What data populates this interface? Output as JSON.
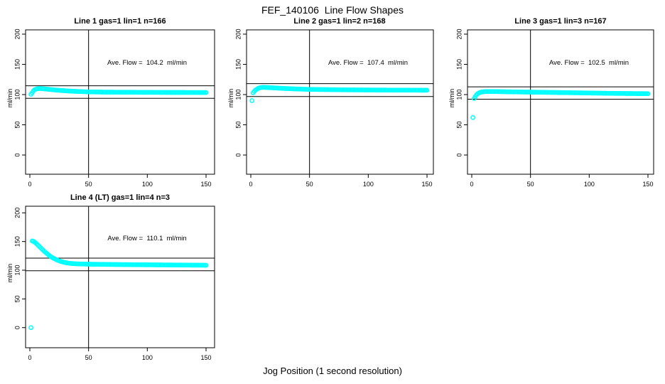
{
  "figure": {
    "main_title": "FEF_140106  Line Flow Shapes",
    "x_axis_label": "Jog Position (1 second resolution)",
    "y_axis_label": "ml/min",
    "point_color": "#00FFFF",
    "line_color": "#000000",
    "background_color": "#FFFFFF"
  },
  "chart_data": [
    {
      "type": "scatter",
      "title": "Line 1 gas=1 lin=1 n=166",
      "annotation": "Ave. Flow =  104.2  ml/min",
      "ave_flow": 104.2,
      "n": 166,
      "ylabel": "ml/min",
      "xlim": [
        0,
        150
      ],
      "ylim": [
        0,
        200
      ],
      "x_ticks": [
        0,
        50,
        100,
        150
      ],
      "y_ticks": [
        0,
        50,
        100,
        150,
        200
      ],
      "vline_x": 50,
      "ref_lines": [
        114.6,
        93.8
      ],
      "outliers": [],
      "band_keyframes": [
        [
          1,
          100.5
        ],
        [
          2,
          103
        ],
        [
          3,
          106
        ],
        [
          4,
          108
        ],
        [
          6,
          109.5
        ],
        [
          9,
          110
        ],
        [
          13,
          109.3
        ],
        [
          18,
          108.3
        ],
        [
          25,
          107
        ],
        [
          32,
          106
        ],
        [
          40,
          105.2
        ],
        [
          50,
          104.5
        ],
        [
          65,
          104
        ],
        [
          85,
          103.8
        ],
        [
          110,
          103.6
        ],
        [
          150,
          103.4
        ]
      ]
    },
    {
      "type": "scatter",
      "title": "Line 2 gas=1 lin=2 n=168",
      "annotation": "Ave. Flow =  107.4  ml/min",
      "ave_flow": 107.4,
      "n": 168,
      "ylabel": "ml/min",
      "xlim": [
        0,
        150
      ],
      "ylim": [
        0,
        200
      ],
      "x_ticks": [
        0,
        50,
        100,
        150
      ],
      "y_ticks": [
        0,
        50,
        100,
        150,
        200
      ],
      "vline_x": 50,
      "ref_lines": [
        118.1,
        96.7
      ],
      "outliers": [
        [
          1,
          90
        ]
      ],
      "band_keyframes": [
        [
          2,
          103
        ],
        [
          3,
          105.5
        ],
        [
          4,
          107.5
        ],
        [
          6,
          110
        ],
        [
          8,
          111.5
        ],
        [
          11,
          112
        ],
        [
          16,
          111.5
        ],
        [
          22,
          110.8
        ],
        [
          30,
          110
        ],
        [
          40,
          109.2
        ],
        [
          50,
          108.6
        ],
        [
          65,
          108.2
        ],
        [
          85,
          107.8
        ],
        [
          110,
          107.5
        ],
        [
          150,
          107.2
        ]
      ]
    },
    {
      "type": "scatter",
      "title": "Line 3 gas=1 lin=3 n=167",
      "annotation": "Ave. Flow =  102.5  ml/min",
      "ave_flow": 102.5,
      "n": 167,
      "ylabel": "ml/min",
      "xlim": [
        0,
        150
      ],
      "ylim": [
        0,
        200
      ],
      "x_ticks": [
        0,
        50,
        100,
        150
      ],
      "y_ticks": [
        0,
        50,
        100,
        150,
        200
      ],
      "vline_x": 50,
      "ref_lines": [
        112.8,
        92.3
      ],
      "outliers": [
        [
          1,
          62
        ],
        [
          2,
          93.5
        ]
      ],
      "band_keyframes": [
        [
          3,
          96.5
        ],
        [
          4,
          99.5
        ],
        [
          5,
          101.5
        ],
        [
          7,
          103.5
        ],
        [
          9,
          104.5
        ],
        [
          12,
          105
        ],
        [
          20,
          105
        ],
        [
          30,
          104.6
        ],
        [
          45,
          104.2
        ],
        [
          60,
          103.8
        ],
        [
          80,
          103.2
        ],
        [
          100,
          102.6
        ],
        [
          120,
          102
        ],
        [
          150,
          101.5
        ]
      ]
    },
    {
      "type": "scatter",
      "title": "Line 4 (LT) gas=1 lin=4 n=3",
      "annotation": "Ave. Flow =  110.1  ml/min",
      "ave_flow": 110.1,
      "n": 3,
      "ylabel": "ml/min",
      "xlim": [
        0,
        150
      ],
      "ylim": [
        0,
        200
      ],
      "x_ticks": [
        0,
        50,
        100,
        150
      ],
      "y_ticks": [
        0,
        50,
        100,
        150,
        200
      ],
      "vline_x": 50,
      "ref_lines": [
        121.1,
        99.1
      ],
      "outliers": [
        [
          1,
          0
        ]
      ],
      "band_keyframes": [
        [
          2,
          151
        ],
        [
          3,
          150.5
        ],
        [
          4,
          149
        ],
        [
          5,
          147.5
        ],
        [
          6,
          145.5
        ],
        [
          8,
          141.5
        ],
        [
          10,
          137.5
        ],
        [
          12,
          133.5
        ],
        [
          14,
          130
        ],
        [
          16,
          126.5
        ],
        [
          18,
          123.5
        ],
        [
          20,
          121
        ],
        [
          23,
          118
        ],
        [
          26,
          115.5
        ],
        [
          30,
          113.3
        ],
        [
          34,
          112
        ],
        [
          38,
          111.3
        ],
        [
          45,
          110.8
        ],
        [
          55,
          110.4
        ],
        [
          70,
          110
        ],
        [
          90,
          109.6
        ],
        [
          115,
          109.2
        ],
        [
          150,
          108.7
        ]
      ]
    }
  ]
}
